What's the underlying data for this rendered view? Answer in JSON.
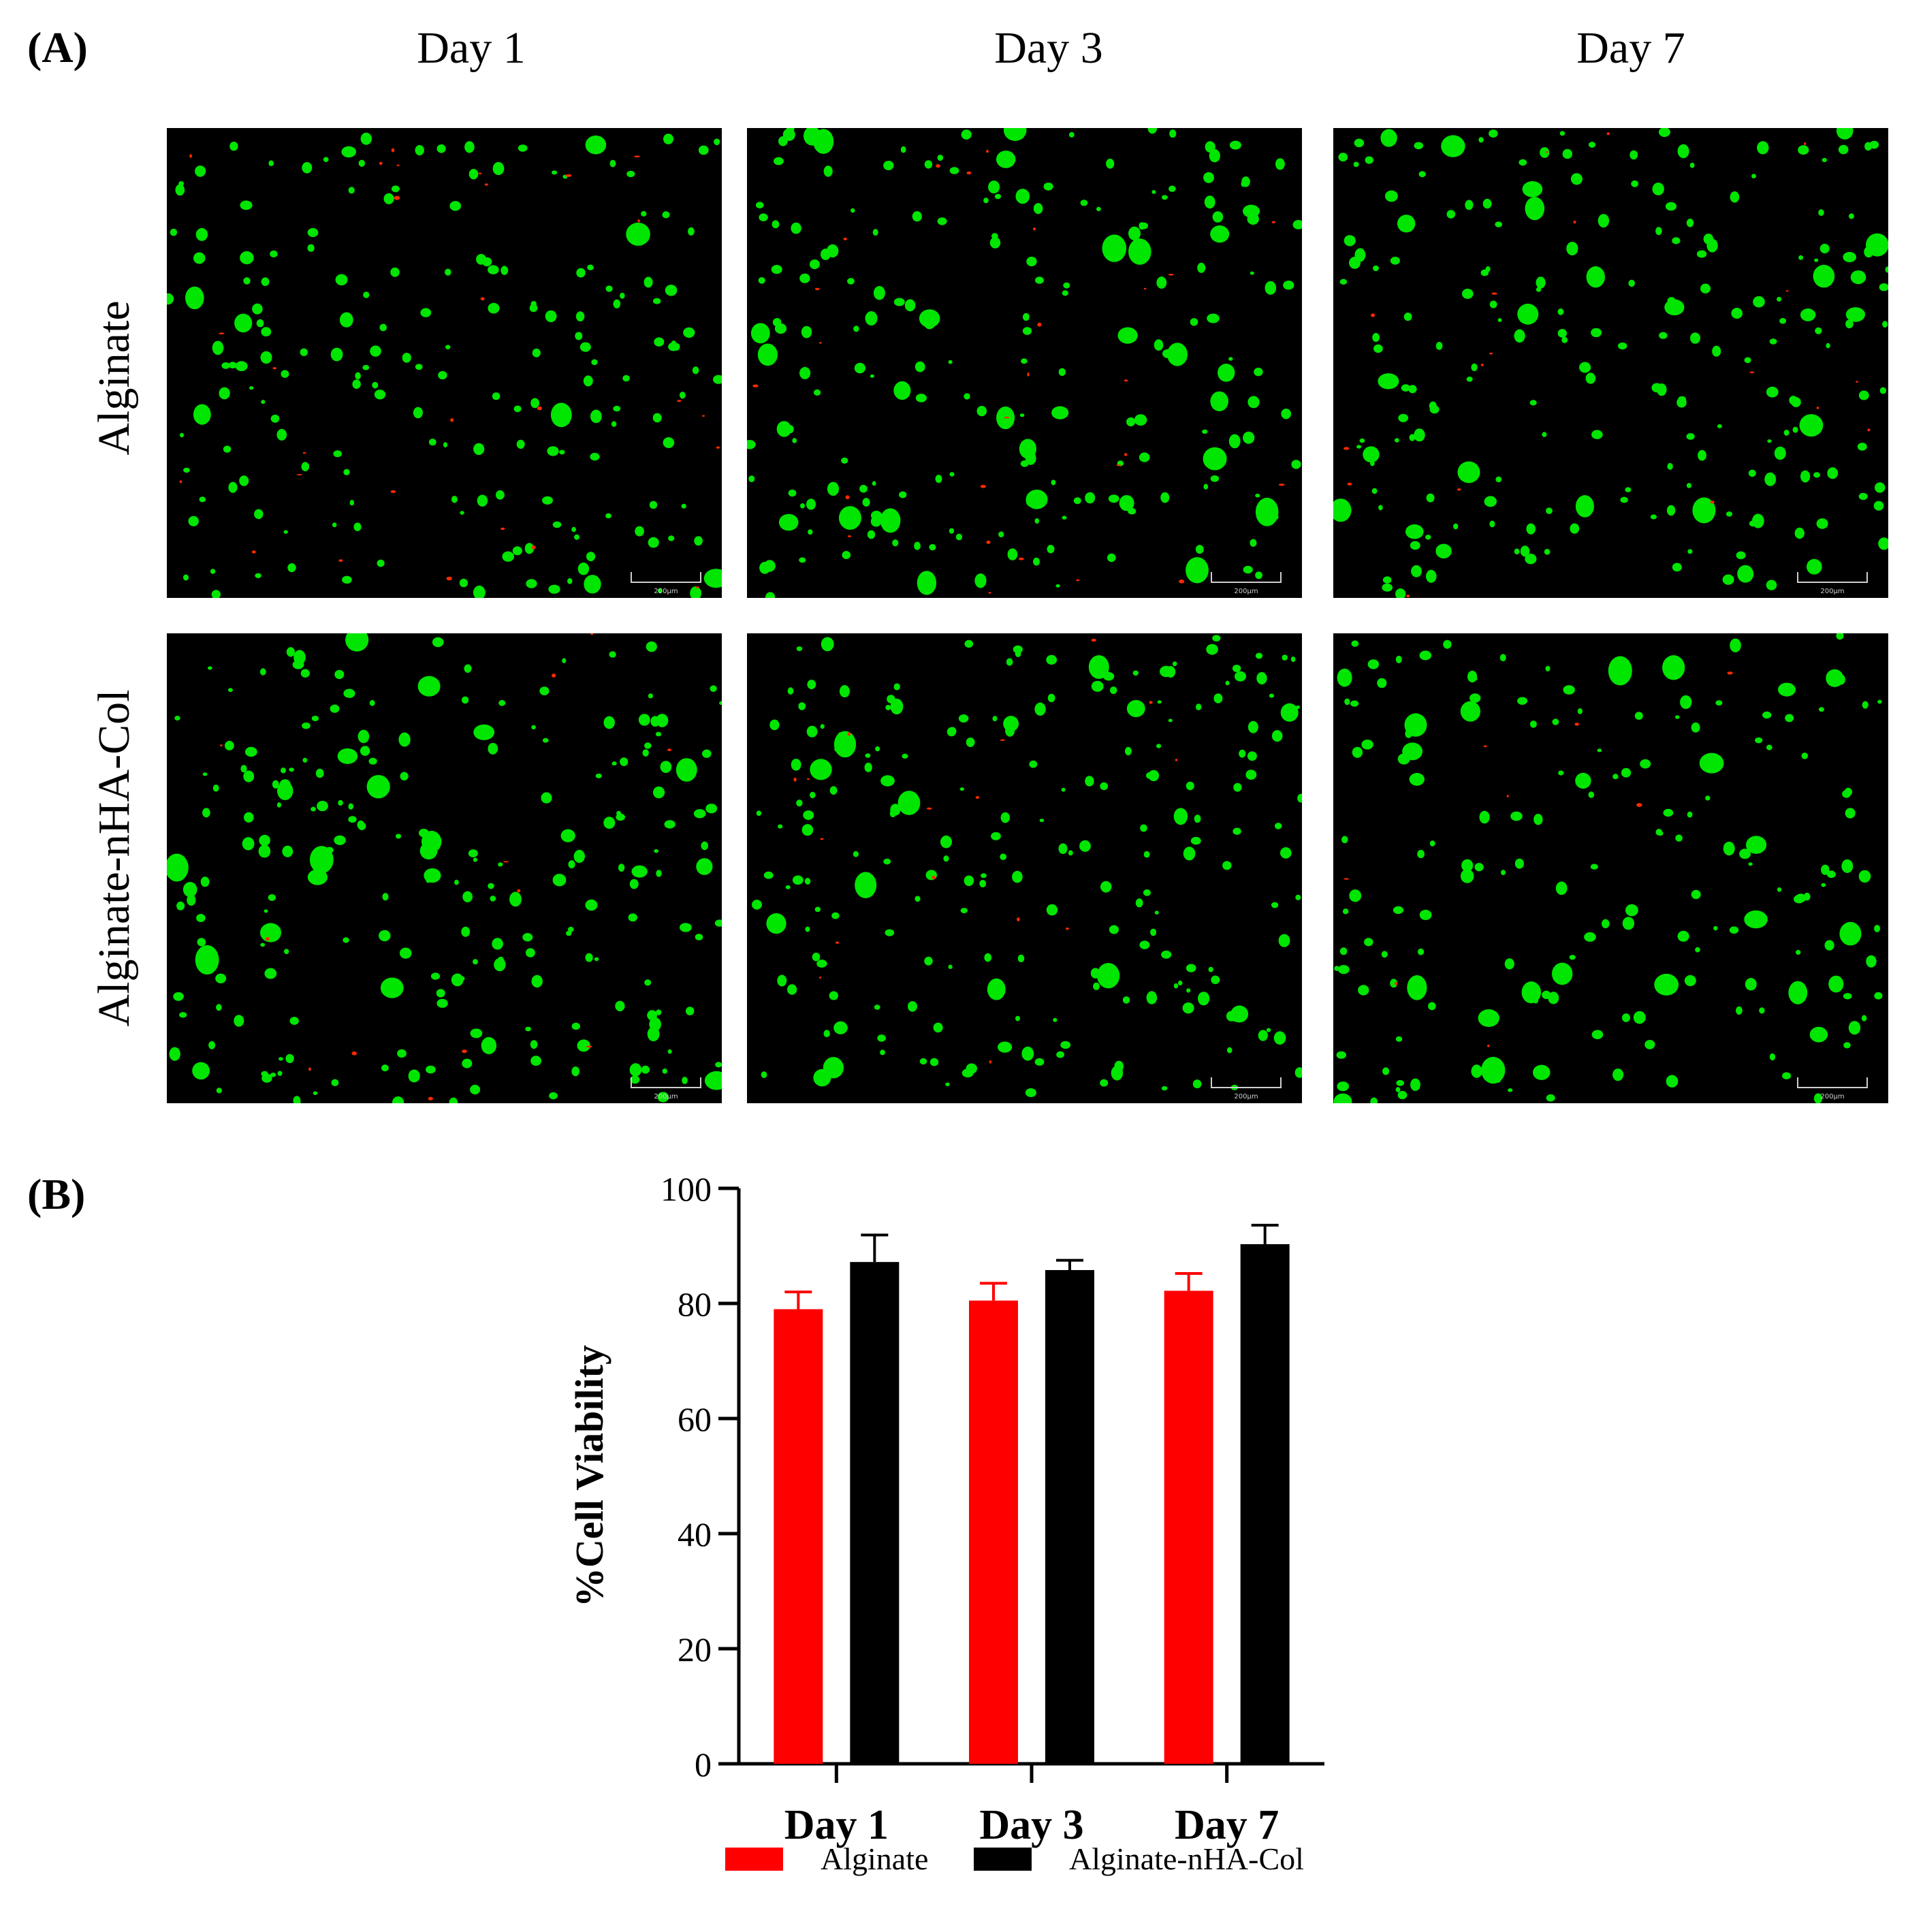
{
  "panel_a": {
    "label": "(A)",
    "columns": [
      "Day 1",
      "Day 3",
      "Day 7"
    ],
    "rows": [
      "Alginate",
      "Alginate-nHA-Col"
    ],
    "scale_bar_label": "200μm"
  },
  "panel_b": {
    "label": "(B)"
  },
  "colors": {
    "live_cells": "#00e600",
    "dead_cells": "#ff2a00",
    "alginate": "#ff0000",
    "alginate_nha_col": "#000000"
  },
  "chart_data": {
    "type": "bar",
    "categories": [
      "Day 1",
      "Day 3",
      "Day 7"
    ],
    "series": [
      {
        "name": "Alginate",
        "values": [
          79,
          80.5,
          82.2
        ],
        "error": [
          3,
          3,
          3
        ],
        "color": "#ff0000"
      },
      {
        "name": "Alginate-nHA-Col",
        "values": [
          87.2,
          85.8,
          90.3
        ],
        "error": [
          4.7,
          1.7,
          3.3
        ],
        "color": "#000000"
      }
    ],
    "ylabel": "%Cell Viability",
    "xlabel": "",
    "ylim": [
      0,
      100
    ],
    "yticks": [
      0,
      20,
      40,
      60,
      80,
      100
    ],
    "legend_position": "bottom",
    "grid": false
  }
}
